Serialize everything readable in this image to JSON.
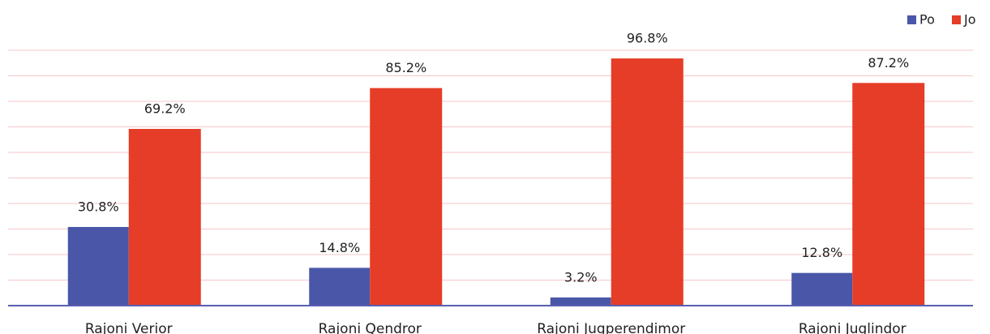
{
  "chart_data": {
    "type": "bar",
    "categories": [
      "Rajoni Verior",
      "Rajoni Qendror",
      "Rajoni Jugperendimor",
      "Rajoni Juglindor"
    ],
    "series": [
      {
        "name": "Po",
        "color": "#4a57a8",
        "values": [
          30.8,
          14.8,
          3.2,
          12.8
        ],
        "value_labels": [
          "30.8%",
          "14.8%",
          "3.2%",
          "12.8%"
        ]
      },
      {
        "name": "Jo",
        "color": "#e53d27",
        "values": [
          69.2,
          85.2,
          96.8,
          87.2
        ],
        "value_labels": [
          "69.2%",
          "85.2%",
          "96.8%",
          "87.2%"
        ]
      }
    ],
    "ylim": [
      0,
      100
    ],
    "yticks": [
      0,
      10,
      20,
      30,
      40,
      50,
      60,
      70,
      80,
      90,
      100
    ],
    "grid": true,
    "legend": "top-right"
  }
}
